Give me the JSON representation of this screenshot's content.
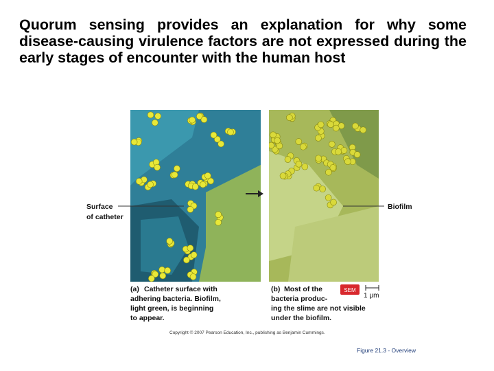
{
  "title": "Quorum sensing provides  an explanation for why some disease-causing virulence factors are not expressed during the early stages of encounter with the human host",
  "figure": {
    "label_left": [
      "Surface",
      "of catheter"
    ],
    "label_right": "Biofilm",
    "caption_a": {
      "letter": "(a)",
      "lines": [
        "Catheter surface with",
        "adhering bacteria. Biofilm,",
        "light green, is beginning",
        "to appear."
      ]
    },
    "caption_b": {
      "letter": "(b)",
      "lines": [
        "Most of the",
        "bacteria produc-",
        "ing the slime are not visible",
        "under the biofilm."
      ]
    },
    "badge": "SEM",
    "scale": "1 μm",
    "copyright": "Copyright © 2007 Pearson Education, Inc., publishing as Benjamin Cummings.",
    "figure_number": "Figure 21.3 - Overview"
  }
}
